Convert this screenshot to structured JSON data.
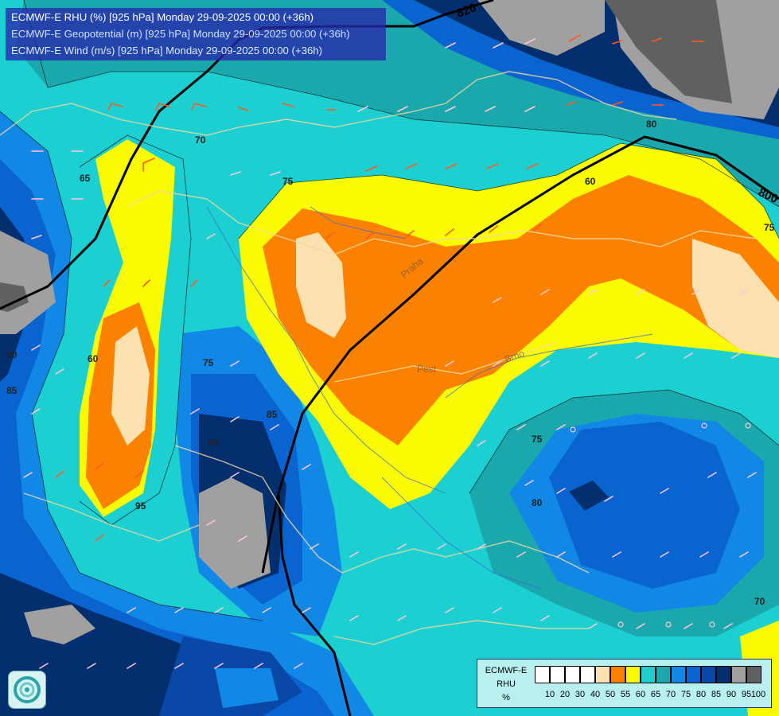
{
  "title_lines": [
    "ECMWF-E RHU (%) [925 hPa] Monday 29-09-2025 00:00 (+36h)",
    "ECMWF-E Geopotential (m) [925 hPa] Monday 29-09-2025 00:00 (+36h)",
    "ECMWF-E Wind (m/s) [925 hPa] Monday 29-09-2025 00:00 (+36h)"
  ],
  "legend": {
    "name_lines": [
      "ECMWF-E",
      "RHU",
      "%"
    ],
    "ticks": [
      "10",
      "20",
      "30",
      "40",
      "50",
      "55",
      "60",
      "65",
      "70",
      "75",
      "80",
      "85",
      "90",
      "95",
      "100"
    ],
    "colors": [
      "#ffffff",
      "#ffffff",
      "#ffffff",
      "#ffffff",
      "#fbe0b0",
      "#fa8200",
      "#fafa00",
      "#1fcfd0",
      "#1aa8ac",
      "#1288e6",
      "#0a64d0",
      "#0a48a8",
      "#042f6e",
      "#a0a0a0",
      "#606060"
    ]
  },
  "contour_labels": {
    "geopotential": [
      "820",
      "800"
    ],
    "rhu": [
      "70",
      "65",
      "75",
      "60",
      "90",
      "85",
      "60",
      "75",
      "85",
      "80",
      "75",
      "70",
      "80",
      "75",
      "95",
      "85"
    ]
  },
  "place_labels": [
    "Praha",
    "Pest",
    "Brno"
  ],
  "palette": {
    "title_box": "#2828aa",
    "geopotential_line": "#000000",
    "border_line": "#f0d8a0",
    "river_line": "#3a6ad0",
    "barb_default": "#ffc8dc",
    "barb_strong": "#ff5a1e"
  }
}
